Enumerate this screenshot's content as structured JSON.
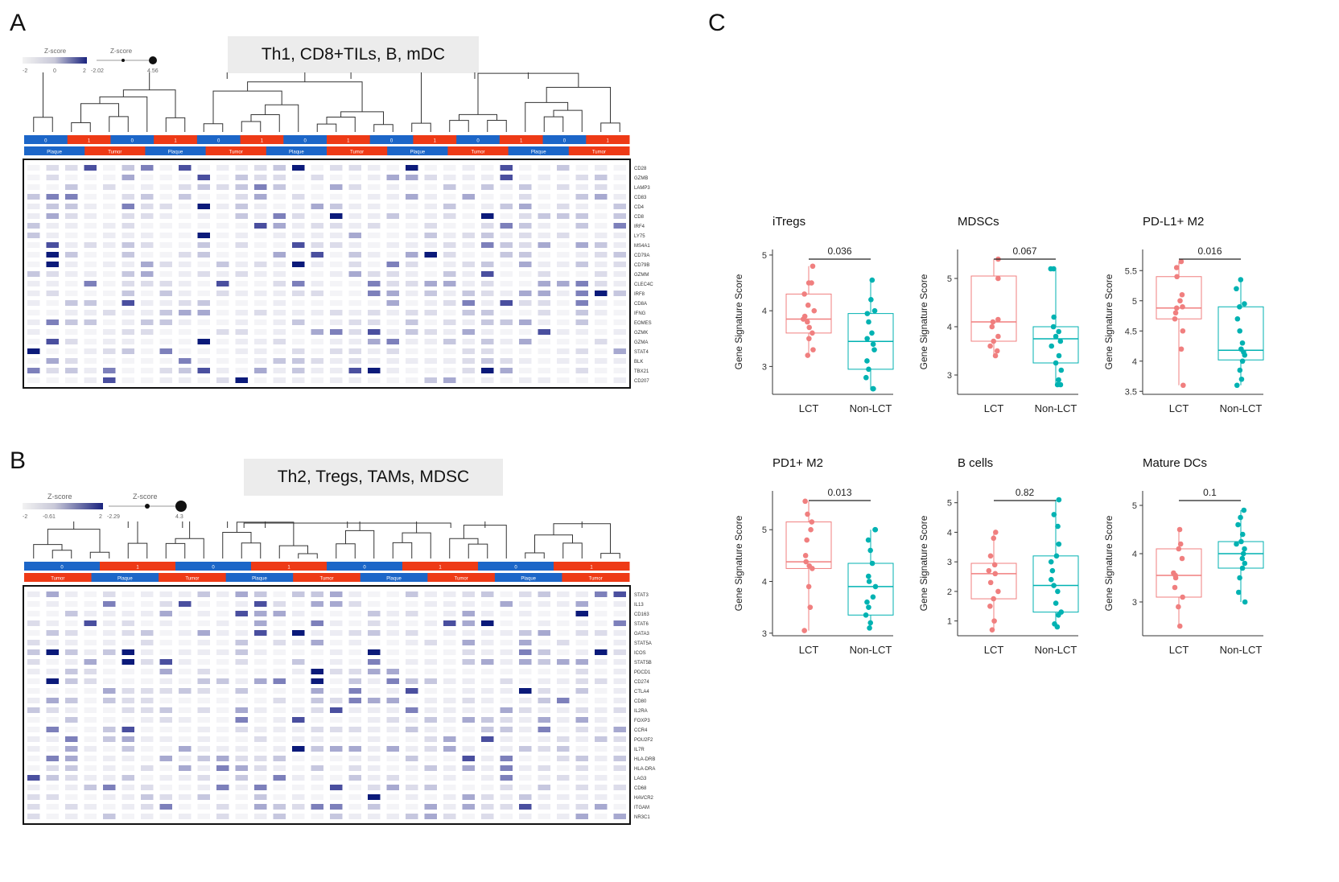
{
  "panels": {
    "A": {
      "letter": "A",
      "title": "Th1, CD8+TILs, B, mDC",
      "legend": {
        "zscore_label_1": "Z-score",
        "zscore_ticks_1": [
          "-2",
          "0",
          "2"
        ],
        "zscore_label_2": "Z-score",
        "zscore_ticks_2": [
          "-2.02",
          "4.56"
        ]
      },
      "top_bar": [
        "0",
        "1",
        "0",
        "1",
        "0",
        "1",
        "0",
        "1",
        "0",
        "1",
        "0",
        "1",
        "0",
        "1"
      ],
      "groups": [
        "Plaque",
        "Tumor",
        "Plaque",
        "Tumor",
        "Plaque",
        "Tumor",
        "Plaque",
        "Tumor",
        "Plaque",
        "Tumor"
      ],
      "genes": [
        "CD28",
        "GZMB",
        "LAMP3",
        "CD83",
        "CD4",
        "CD8",
        "IRF4",
        "LY75",
        "MS4A1",
        "CD79A",
        "CD79B",
        "GZMM",
        "CLEC4C",
        "IRF8",
        "CD8A",
        "IFNG",
        "EOMES",
        "GZMK",
        "GZMA",
        "STAT4",
        "BLK",
        "TBX21",
        "CD207"
      ]
    },
    "B": {
      "letter": "B",
      "title": "Th2, Tregs, TAMs, MDSC",
      "legend": {
        "zscore_label_1": "Z-score",
        "zscore_ticks_1": [
          "-2",
          "-0.61",
          "2"
        ],
        "zscore_label_2": "Z-score",
        "zscore_ticks_2": [
          "-2.29",
          "4.3"
        ]
      },
      "top_bar": [
        "0",
        "1",
        "0",
        "1",
        "0",
        "1",
        "0",
        "1"
      ],
      "groups": [
        "Tumor",
        "Plaque",
        "Tumor",
        "Plaque",
        "Tumor",
        "Plaque",
        "Tumor",
        "Plaque",
        "Tumor"
      ],
      "genes": [
        "STAT3",
        "IL13",
        "CD163",
        "STAT6",
        "GATA3",
        "STAT5A",
        "ICOS",
        "STAT5B",
        "PDCD1",
        "CD274",
        "CTLA4",
        "CD80",
        "IL2RA",
        "FOXP3",
        "CCR4",
        "POU2F2",
        "IL7R",
        "HLA-DRB",
        "HLA-DRA",
        "LAG3",
        "CD68",
        "HAVCR2",
        "ITGAM",
        "NR3C1"
      ]
    },
    "C": {
      "letter": "C"
    }
  },
  "colors": {
    "lct": "#f07f7f",
    "nonlct": "#00b2b2",
    "heat_dark": "#0b1a7a",
    "red_bar": "#ee3a16",
    "blue_bar": "#1c66c8"
  },
  "boxplots": [
    {
      "title": "iTregs",
      "pvalue": "0.036",
      "ylabel": "Gene Signature Score",
      "xcats": [
        "LCT",
        "Non-LCT"
      ],
      "yticks": [
        3,
        4,
        5
      ],
      "ylim": [
        2.5,
        5.1
      ],
      "lct": {
        "min": 3.2,
        "q1": 3.6,
        "median": 3.85,
        "q3": 4.3,
        "max": 4.8,
        "points": [
          3.2,
          3.3,
          3.5,
          3.6,
          3.7,
          3.8,
          3.85,
          3.9,
          4.0,
          4.1,
          4.3,
          4.5,
          4.5,
          4.8
        ]
      },
      "nonlct": {
        "min": 2.6,
        "q1": 2.95,
        "median": 3.45,
        "q3": 3.95,
        "max": 4.55,
        "points": [
          2.6,
          2.6,
          2.8,
          2.95,
          3.1,
          3.3,
          3.4,
          3.5,
          3.6,
          3.8,
          3.95,
          4.0,
          4.2,
          4.55
        ]
      }
    },
    {
      "title": "MDSCs",
      "pvalue": "0.067",
      "ylabel": "Gene Signature Score",
      "xcats": [
        "LCT",
        "Non-LCT"
      ],
      "yticks": [
        3,
        4,
        5
      ],
      "ylim": [
        2.6,
        5.6
      ],
      "lct": {
        "min": 3.4,
        "q1": 3.7,
        "median": 4.1,
        "q3": 5.05,
        "max": 5.4,
        "points": [
          3.4,
          3.5,
          3.6,
          3.7,
          3.8,
          4.0,
          4.1,
          4.15,
          5.0,
          5.4
        ]
      },
      "nonlct": {
        "min": 2.8,
        "q1": 3.25,
        "median": 3.75,
        "q3": 4.0,
        "max": 5.2,
        "points": [
          2.8,
          2.8,
          2.9,
          3.1,
          3.25,
          3.4,
          3.6,
          3.7,
          3.8,
          3.9,
          4.0,
          4.2,
          5.2,
          5.2
        ]
      }
    },
    {
      "title": "PD-L1+ M2",
      "pvalue": "0.016",
      "ylabel": "Gene Signature Score",
      "xcats": [
        "LCT",
        "Non-LCT"
      ],
      "yticks": [
        3.5,
        4,
        4.5,
        5,
        5.5
      ],
      "ylim": [
        3.45,
        5.85
      ],
      "lct": {
        "min": 3.6,
        "q1": 4.7,
        "median": 4.88,
        "q3": 5.4,
        "max": 5.65,
        "points": [
          3.6,
          4.2,
          4.5,
          4.7,
          4.8,
          4.88,
          4.9,
          5.0,
          5.1,
          5.4,
          5.55,
          5.65
        ]
      },
      "nonlct": {
        "min": 3.6,
        "q1": 4.02,
        "median": 4.18,
        "q3": 4.9,
        "max": 5.35,
        "points": [
          3.6,
          3.7,
          3.85,
          4.0,
          4.1,
          4.15,
          4.2,
          4.3,
          4.5,
          4.7,
          4.9,
          4.95,
          5.2,
          5.35
        ]
      }
    },
    {
      "title": "PD1+ M2",
      "pvalue": "0.013",
      "ylabel": "Gene Signature Score",
      "xcats": [
        "LCT",
        "Non-LCT"
      ],
      "yticks": [
        3,
        4,
        5
      ],
      "ylim": [
        2.95,
        5.75
      ],
      "lct": {
        "min": 3.05,
        "q1": 4.25,
        "median": 4.38,
        "q3": 5.15,
        "max": 5.55,
        "points": [
          3.05,
          3.5,
          3.9,
          4.25,
          4.3,
          4.38,
          4.5,
          4.8,
          5.0,
          5.15,
          5.3,
          5.55
        ]
      },
      "nonlct": {
        "min": 3.1,
        "q1": 3.35,
        "median": 3.9,
        "q3": 4.35,
        "max": 5.0,
        "points": [
          3.1,
          3.2,
          3.35,
          3.5,
          3.6,
          3.7,
          3.9,
          4.0,
          4.1,
          4.35,
          4.6,
          4.8,
          5.0,
          5.0
        ]
      }
    },
    {
      "title": "B cells",
      "pvalue": "0.82",
      "ylabel": "Gene Signature Score",
      "xcats": [
        "LCT",
        "Non-LCT"
      ],
      "yticks": [
        1,
        2,
        3,
        4,
        5
      ],
      "ylim": [
        0.5,
        5.4
      ],
      "lct": {
        "min": 0.7,
        "q1": 1.75,
        "median": 2.6,
        "q3": 2.95,
        "max": 4.0,
        "points": [
          0.7,
          1.0,
          1.5,
          1.75,
          2.0,
          2.3,
          2.6,
          2.7,
          2.9,
          3.2,
          3.8,
          4.0
        ]
      },
      "nonlct": {
        "min": 0.8,
        "q1": 1.3,
        "median": 2.2,
        "q3": 3.2,
        "max": 5.1,
        "points": [
          0.8,
          0.9,
          1.2,
          1.3,
          1.6,
          2.0,
          2.2,
          2.4,
          2.7,
          3.0,
          3.2,
          3.6,
          4.2,
          4.6,
          5.1
        ]
      }
    },
    {
      "title": "Mature DCs",
      "pvalue": "0.1",
      "ylabel": "Gene Signature Score",
      "xcats": [
        "LCT",
        "Non-LCT"
      ],
      "yticks": [
        3,
        4,
        5
      ],
      "ylim": [
        2.3,
        5.3
      ],
      "lct": {
        "min": 2.5,
        "q1": 3.1,
        "median": 3.55,
        "q3": 4.1,
        "max": 4.5,
        "points": [
          2.5,
          2.9,
          3.1,
          3.3,
          3.5,
          3.55,
          3.6,
          3.9,
          4.1,
          4.2,
          4.5
        ]
      },
      "nonlct": {
        "min": 3.0,
        "q1": 3.7,
        "median": 4.0,
        "q3": 4.25,
        "max": 4.9,
        "points": [
          3.0,
          3.2,
          3.5,
          3.7,
          3.8,
          3.9,
          4.0,
          4.1,
          4.2,
          4.25,
          4.4,
          4.6,
          4.75,
          4.9
        ]
      }
    }
  ]
}
